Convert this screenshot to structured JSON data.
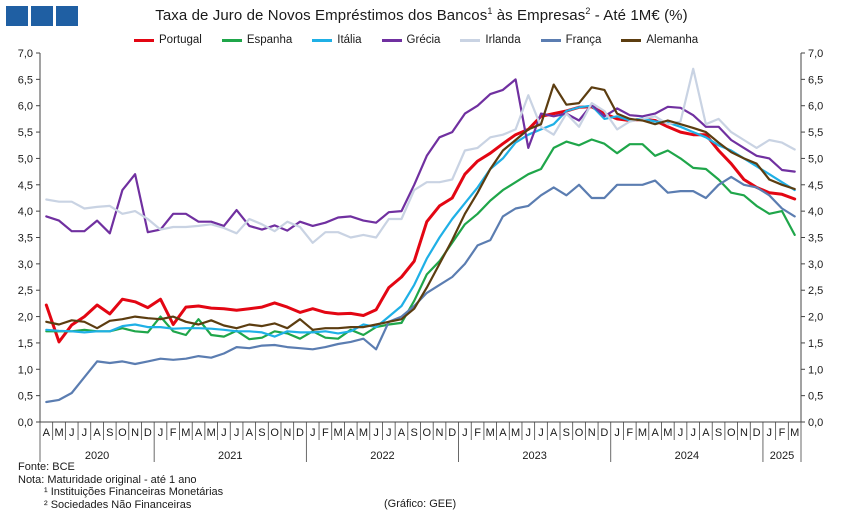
{
  "header": {
    "title_text": "Taxa de Juro de Novos Empréstimos dos Bancos",
    "title_sup1": "1",
    "title_mid": " às Empresas",
    "title_sup2": "2",
    "title_end": " -  Até 1M€ (%)"
  },
  "footer": {
    "fonte": "Fonte: BCE",
    "nota": "Nota: Maturidade original - até 1 ano",
    "note1": "¹ Instituições Financeiras Monetárias",
    "note2": "² Sociedades Não Financeiras",
    "credit": "(Gráfico: GEE)"
  },
  "colors": {
    "Portugal": "#e30613",
    "Espanha": "#1fa64a",
    "Itália": "#1fb0e6",
    "Grécia": "#7030a0",
    "Irlanda": "#c9d3e3",
    "França": "#5b7db1",
    "Alemanha": "#5c3d10"
  },
  "chart_data": {
    "type": "line",
    "title": "Taxa de Juro de Novos Empréstimos dos Bancos¹ às Empresas² -  Até 1M€ (%)",
    "x": [
      "A",
      "M",
      "J",
      "J",
      "A",
      "S",
      "O",
      "N",
      "D",
      "J",
      "F",
      "M",
      "A",
      "M",
      "J",
      "J",
      "A",
      "S",
      "O",
      "N",
      "D",
      "J",
      "F",
      "M",
      "A",
      "M",
      "J",
      "J",
      "A",
      "S",
      "O",
      "N",
      "D",
      "J",
      "F",
      "M",
      "A",
      "M",
      "J",
      "J",
      "A",
      "S",
      "O",
      "N",
      "D",
      "J",
      "F",
      "M",
      "A",
      "M",
      "J",
      "J",
      "A",
      "S",
      "O",
      "N",
      "D",
      "J",
      "F",
      "M"
    ],
    "years": [
      {
        "label": "2020",
        "start": 0,
        "end": 8
      },
      {
        "label": "2021",
        "start": 9,
        "end": 20
      },
      {
        "label": "2022",
        "start": 21,
        "end": 32
      },
      {
        "label": "2023",
        "start": 33,
        "end": 44
      },
      {
        "label": "2024",
        "start": 45,
        "end": 56
      },
      {
        "label": "2025",
        "start": 57,
        "end": 59
      }
    ],
    "ylim": [
      0,
      7
    ],
    "yticks": [
      "0,0",
      "0,5",
      "1,0",
      "1,5",
      "2,0",
      "2,5",
      "3,0",
      "3,5",
      "4,0",
      "4,5",
      "5,0",
      "5,5",
      "6,0",
      "6,5",
      "7,0"
    ],
    "legend_position": "top",
    "grid": false,
    "series": [
      {
        "name": "Portugal",
        "values": [
          2.22,
          1.52,
          1.84,
          2.0,
          2.22,
          2.05,
          2.33,
          2.28,
          2.17,
          2.33,
          1.85,
          2.18,
          2.2,
          2.16,
          2.15,
          2.12,
          2.15,
          2.18,
          2.26,
          2.18,
          2.08,
          2.15,
          2.08,
          2.05,
          2.06,
          2.02,
          2.13,
          2.55,
          2.75,
          3.05,
          3.8,
          4.1,
          4.25,
          4.7,
          4.95,
          5.1,
          5.28,
          5.45,
          5.55,
          5.8,
          5.85,
          5.9,
          5.97,
          5.98,
          5.85,
          5.75,
          5.72,
          5.74,
          5.72,
          5.6,
          5.5,
          5.45,
          5.45,
          5.15,
          4.9,
          4.6,
          4.45,
          4.35,
          4.32,
          4.23
        ]
      },
      {
        "name": "Espanha",
        "values": [
          1.72,
          1.72,
          1.72,
          1.75,
          1.72,
          1.72,
          1.78,
          1.72,
          1.7,
          2.0,
          1.72,
          1.65,
          1.95,
          1.65,
          1.62,
          1.73,
          1.57,
          1.6,
          1.72,
          1.68,
          1.58,
          1.72,
          1.6,
          1.58,
          1.75,
          1.65,
          1.8,
          1.85,
          1.88,
          2.3,
          2.8,
          3.05,
          3.4,
          3.75,
          3.95,
          4.2,
          4.4,
          4.55,
          4.7,
          4.8,
          5.2,
          5.32,
          5.25,
          5.36,
          5.28,
          5.1,
          5.27,
          5.27,
          5.05,
          5.15,
          5.0,
          4.82,
          4.8,
          4.6,
          4.35,
          4.3,
          4.1,
          3.95,
          4.0,
          3.55
        ]
      },
      {
        "name": "Itália",
        "values": [
          1.75,
          1.73,
          1.72,
          1.7,
          1.72,
          1.72,
          1.82,
          1.85,
          1.8,
          1.8,
          1.77,
          1.78,
          1.78,
          1.77,
          1.75,
          1.72,
          1.72,
          1.7,
          1.62,
          1.72,
          1.7,
          1.7,
          1.72,
          1.68,
          1.72,
          1.85,
          1.8,
          2.0,
          2.2,
          2.6,
          3.1,
          3.5,
          3.85,
          4.15,
          4.45,
          4.8,
          5.0,
          5.3,
          5.45,
          5.55,
          5.65,
          5.9,
          5.97,
          6.0,
          5.75,
          5.8,
          5.72,
          5.76,
          5.7,
          5.68,
          5.6,
          5.5,
          5.4,
          5.25,
          5.15,
          5.0,
          4.85,
          4.7,
          4.55,
          4.4
        ]
      },
      {
        "name": "Grécia",
        "values": [
          3.9,
          3.82,
          3.62,
          3.62,
          3.82,
          3.58,
          4.4,
          4.7,
          3.6,
          3.65,
          3.95,
          3.95,
          3.8,
          3.8,
          3.72,
          4.02,
          3.72,
          3.65,
          3.73,
          3.63,
          3.8,
          3.72,
          3.78,
          3.88,
          3.9,
          3.82,
          3.78,
          3.98,
          4.0,
          4.5,
          5.05,
          5.4,
          5.5,
          5.85,
          6.0,
          6.22,
          6.3,
          6.5,
          5.2,
          5.85,
          5.8,
          5.85,
          5.72,
          6.02,
          5.8,
          5.95,
          5.82,
          5.8,
          5.85,
          5.98,
          5.96,
          5.82,
          5.6,
          5.6,
          5.35,
          5.2,
          5.05,
          5.0,
          4.78,
          4.75
        ]
      },
      {
        "name": "Irlanda",
        "values": [
          4.22,
          4.18,
          4.18,
          4.05,
          4.08,
          4.1,
          3.95,
          4.0,
          3.85,
          3.65,
          3.7,
          3.7,
          3.72,
          3.75,
          3.68,
          3.58,
          3.85,
          3.75,
          3.62,
          3.8,
          3.7,
          3.4,
          3.6,
          3.6,
          3.5,
          3.55,
          3.5,
          3.85,
          3.85,
          4.4,
          4.55,
          4.55,
          4.6,
          5.15,
          5.2,
          5.4,
          5.45,
          5.55,
          6.2,
          5.6,
          5.45,
          5.85,
          5.6,
          6.05,
          5.9,
          5.55,
          5.7,
          5.75,
          5.8,
          5.65,
          5.7,
          6.7,
          5.65,
          5.75,
          5.5,
          5.35,
          5.2,
          5.35,
          5.3,
          5.17
        ]
      },
      {
        "name": "França",
        "values": [
          0.38,
          0.42,
          0.55,
          0.85,
          1.15,
          1.12,
          1.15,
          1.1,
          1.15,
          1.2,
          1.18,
          1.2,
          1.25,
          1.22,
          1.3,
          1.42,
          1.4,
          1.45,
          1.46,
          1.42,
          1.4,
          1.38,
          1.42,
          1.48,
          1.52,
          1.58,
          1.38,
          1.9,
          2.0,
          2.2,
          2.45,
          2.6,
          2.75,
          3.0,
          3.35,
          3.45,
          3.9,
          4.05,
          4.1,
          4.3,
          4.45,
          4.3,
          4.5,
          4.25,
          4.25,
          4.5,
          4.5,
          4.5,
          4.58,
          4.35,
          4.38,
          4.38,
          4.25,
          4.5,
          4.65,
          4.5,
          4.45,
          4.3,
          4.05,
          3.9
        ]
      },
      {
        "name": "Alemanha",
        "values": [
          1.9,
          1.85,
          1.93,
          1.9,
          1.78,
          1.92,
          1.95,
          2.0,
          1.97,
          1.95,
          2.0,
          1.9,
          1.85,
          1.93,
          1.83,
          1.78,
          1.85,
          1.82,
          1.87,
          1.78,
          1.95,
          1.75,
          1.78,
          1.78,
          1.8,
          1.8,
          1.85,
          1.9,
          1.95,
          2.15,
          2.55,
          3.0,
          3.45,
          3.95,
          4.35,
          4.8,
          5.15,
          5.35,
          5.55,
          5.65,
          6.4,
          6.02,
          6.05,
          6.35,
          6.3,
          5.85,
          5.75,
          5.72,
          5.65,
          5.72,
          5.65,
          5.58,
          5.5,
          5.3,
          5.12,
          5.0,
          4.9,
          4.6,
          4.5,
          4.42
        ]
      }
    ]
  }
}
